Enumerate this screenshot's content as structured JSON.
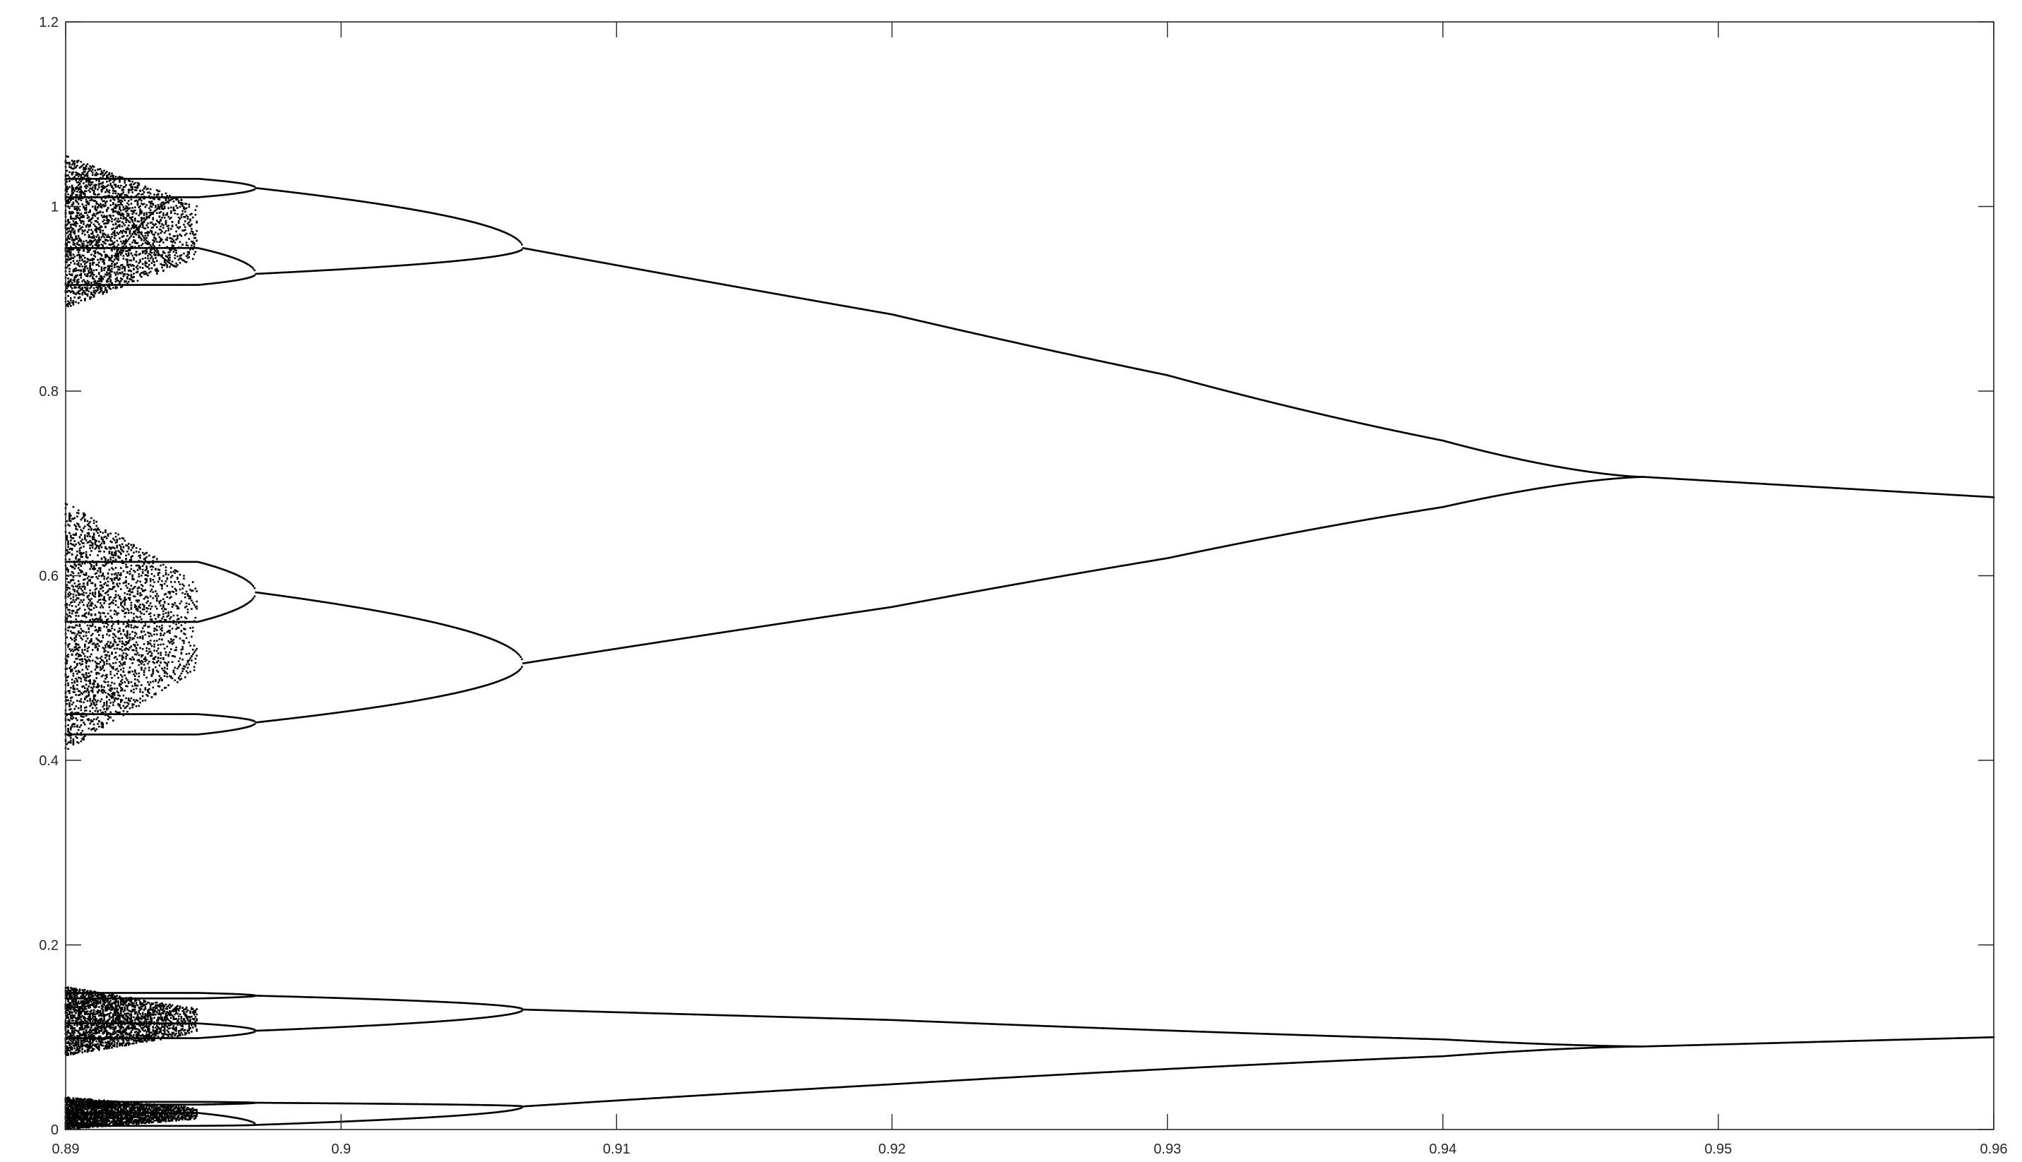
{
  "chart_data": {
    "type": "scatter",
    "title": "",
    "xlabel": "",
    "ylabel": "",
    "xlim": [
      0.89,
      0.96
    ],
    "ylim": [
      0,
      1.2
    ],
    "grid": false,
    "box": true,
    "marker_color": "#000000",
    "axis_color": "#262626",
    "x_ticks": [
      {
        "value": 0.89,
        "label": "0.89"
      },
      {
        "value": 0.9,
        "label": "0.9"
      },
      {
        "value": 0.91,
        "label": "0.91"
      },
      {
        "value": 0.92,
        "label": "0.92"
      },
      {
        "value": 0.93,
        "label": "0.93"
      },
      {
        "value": 0.94,
        "label": "0.94"
      },
      {
        "value": 0.95,
        "label": "0.95"
      },
      {
        "value": 0.96,
        "label": "0.96"
      }
    ],
    "y_ticks": [
      {
        "value": 0,
        "label": "0"
      },
      {
        "value": 0.2,
        "label": "0.2"
      },
      {
        "value": 0.4,
        "label": "0.4"
      },
      {
        "value": 0.6,
        "label": "0.6"
      },
      {
        "value": 0.8,
        "label": "0.8"
      },
      {
        "value": 1.0,
        "label": "1"
      },
      {
        "value": 1.2,
        "label": "1.2"
      }
    ],
    "period_doubling_points": [
      0.9473,
      0.9066,
      0.8969,
      0.8948
    ],
    "branches": [
      {
        "name": "period-1",
        "x_start": 0.9473,
        "x_end": 0.96,
        "upper": [
          [
            0.9473,
            0.707
          ],
          [
            0.96,
            0.685
          ]
        ],
        "lower": [
          [
            0.9473,
            0.09
          ],
          [
            0.96,
            0.1
          ]
        ]
      },
      {
        "name": "period-2",
        "x_start": 0.9066,
        "x_end": 0.9473,
        "upper": [
          [
            0.9066,
            0.955
          ],
          [
            0.92,
            0.922
          ],
          [
            0.93,
            0.876
          ],
          [
            0.94,
            0.8
          ],
          [
            0.9473,
            0.707
          ]
        ],
        "lower": [
          [
            0.9066,
            0.505
          ],
          [
            0.92,
            0.535
          ],
          [
            0.93,
            0.572
          ],
          [
            0.94,
            0.63
          ],
          [
            0.9473,
            0.707
          ]
        ],
        "upper_small": [
          [
            0.9066,
            0.13
          ],
          [
            0.92,
            0.125
          ],
          [
            0.94,
            0.108
          ],
          [
            0.9473,
            0.09
          ]
        ],
        "lower_small": [
          [
            0.9066,
            0.025
          ],
          [
            0.92,
            0.04
          ],
          [
            0.94,
            0.065
          ],
          [
            0.9473,
            0.09
          ]
        ]
      },
      {
        "name": "period-4",
        "x_start": 0.8969,
        "x_end": 0.9066,
        "bands": [
          {
            "y_split": 0.955,
            "upper": [
              [
                0.8969,
                1.02
              ],
              [
                0.9066,
                0.955
              ]
            ],
            "lower": [
              [
                0.8969,
                0.927
              ],
              [
                0.9066,
                0.955
              ]
            ]
          },
          {
            "y_split": 0.505,
            "upper": [
              [
                0.8969,
                0.582
              ],
              [
                0.9066,
                0.505
              ]
            ],
            "lower": [
              [
                0.8969,
                0.441
              ],
              [
                0.9066,
                0.505
              ]
            ]
          },
          {
            "y_split": 0.13,
            "upper": [
              [
                0.8969,
                0.145
              ],
              [
                0.9066,
                0.13
              ]
            ],
            "lower": [
              [
                0.8969,
                0.107
              ],
              [
                0.9066,
                0.13
              ]
            ]
          },
          {
            "y_split": 0.025,
            "upper": [
              [
                0.8969,
                0.029
              ],
              [
                0.9066,
                0.025
              ]
            ],
            "lower": [
              [
                0.8969,
                0.005
              ],
              [
                0.9066,
                0.025
              ]
            ]
          }
        ]
      },
      {
        "name": "period-8",
        "x_start": 0.8948,
        "x_end": 0.8969,
        "bands": [
          {
            "upper": [
              [
                0.8948,
                1.03
              ]
            ],
            "lower": [
              [
                0.8948,
                1.01
              ]
            ]
          },
          {
            "upper": [
              [
                0.8948,
                0.955
              ]
            ],
            "lower": [
              [
                0.8948,
                0.915
              ]
            ]
          },
          {
            "upper": [
              [
                0.8948,
                0.615
              ]
            ],
            "lower": [
              [
                0.8948,
                0.55
              ]
            ]
          },
          {
            "upper": [
              [
                0.8948,
                0.45
              ]
            ],
            "lower": [
              [
                0.8948,
                0.428
              ]
            ]
          },
          {
            "upper": [
              [
                0.8948,
                0.148
              ]
            ],
            "lower": [
              [
                0.8948,
                0.142
              ]
            ]
          },
          {
            "upper": [
              [
                0.8948,
                0.115
              ]
            ],
            "lower": [
              [
                0.8948,
                0.099
              ]
            ]
          },
          {
            "upper": [
              [
                0.8948,
                0.03
              ]
            ],
            "lower": [
              [
                0.8948,
                0.027
              ]
            ]
          },
          {
            "upper": [
              [
                0.8948,
                0.018
              ]
            ],
            "lower": [
              [
                0.8948,
                0.004
              ]
            ]
          }
        ]
      }
    ],
    "chaotic_region": {
      "x_range": [
        0.89,
        0.8948
      ],
      "y_bands": [
        [
          0.89,
          1.055
        ],
        [
          0.41,
          0.68
        ],
        [
          0.08,
          0.155
        ],
        [
          0.0,
          0.035
        ]
      ]
    }
  }
}
